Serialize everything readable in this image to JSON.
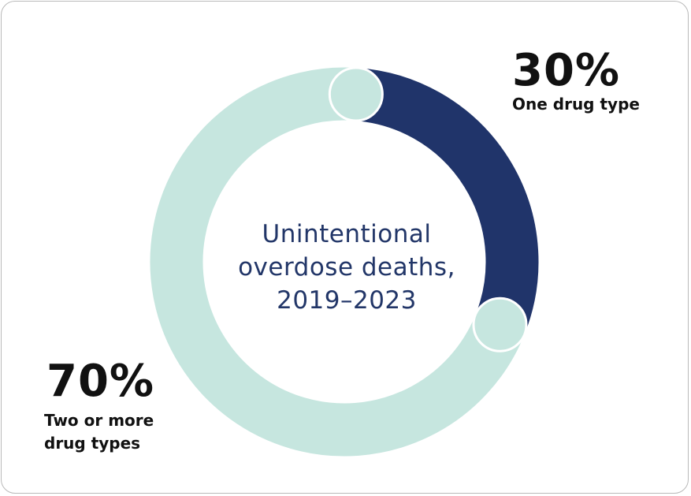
{
  "chart_data": {
    "type": "pie",
    "title": "Unintentional overdose deaths, 2019–2023",
    "title_lines": [
      "Unintentional",
      "overdose deaths,",
      "2019–2023"
    ],
    "slices": [
      {
        "label": "One drug type",
        "label_lines": [
          "One drug type"
        ],
        "value": 30,
        "value_label": "30%",
        "color": "#20346a"
      },
      {
        "label": "Two or more drug types",
        "label_lines": [
          "Two or more",
          "drug types"
        ],
        "value": 70,
        "value_label": "70%",
        "color": "#c6e6df"
      }
    ],
    "donut": true,
    "legend": "none"
  }
}
